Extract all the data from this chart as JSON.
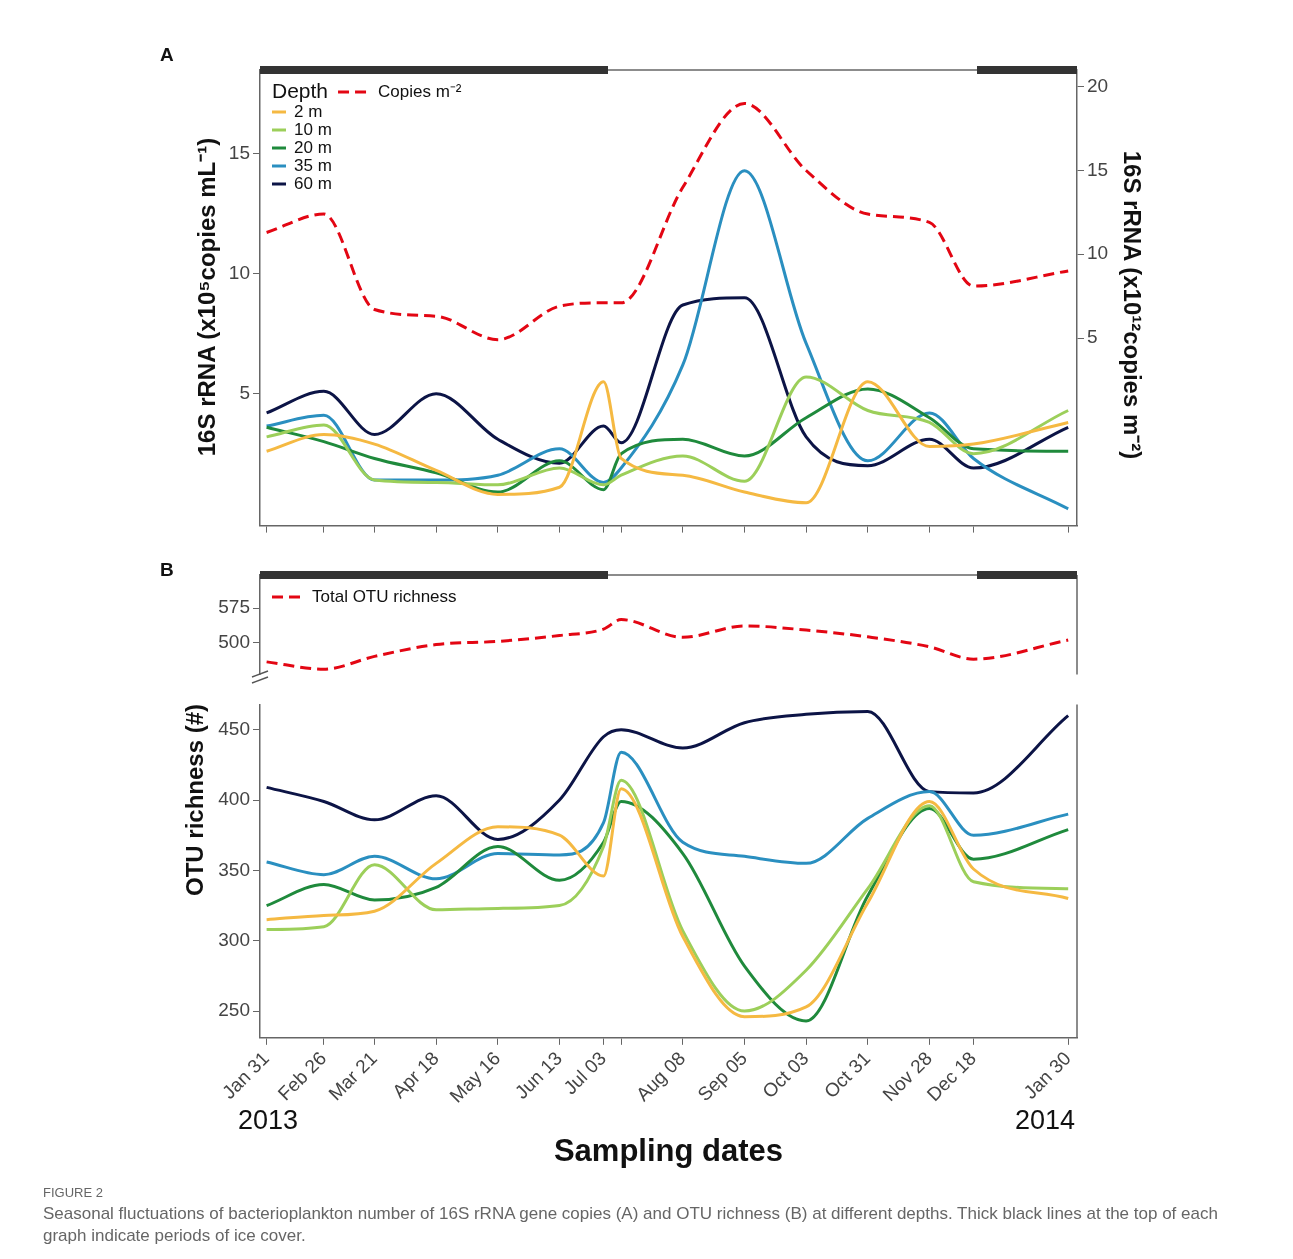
{
  "chart_data": [
    {
      "type": "line",
      "title": "A",
      "ylabel": "16S rRNA (x10⁵copies mL⁻¹)",
      "y2label": "16S rRNA (x10¹²copies m⁻²)",
      "legend_title": "Depth",
      "x": [
        "2013-01-31",
        "2013-02-26",
        "2013-03-21",
        "2013-04-18",
        "2013-05-16",
        "2013-06-13",
        "2013-07-03",
        "2013-07-11",
        "2013-08-08",
        "2013-09-05",
        "2013-10-03",
        "2013-10-31",
        "2013-11-28",
        "2013-12-18",
        "2014-01-30"
      ],
      "xlim": [
        "2013-01-28",
        "2014-02-03"
      ],
      "xticks": [
        {
          "value": "2013-01-31",
          "label": null
        },
        {
          "value": "2013-02-26",
          "label": null
        },
        {
          "value": "2013-03-21",
          "label": null
        },
        {
          "value": "2013-04-18",
          "label": null
        },
        {
          "value": "2013-05-16",
          "label": null
        },
        {
          "value": "2013-06-13",
          "label": null
        },
        {
          "value": "2013-07-03",
          "label": null
        },
        {
          "value": "2013-07-11",
          "label": null
        },
        {
          "value": "2013-08-08",
          "label": null
        },
        {
          "value": "2013-09-05",
          "label": null
        },
        {
          "value": "2013-10-03",
          "label": null
        },
        {
          "value": "2013-10-31",
          "label": null
        },
        {
          "value": "2013-11-28",
          "label": null
        },
        {
          "value": "2013-12-18",
          "label": null
        },
        {
          "value": "2014-01-30",
          "label": null
        }
      ],
      "ylim": [
        -0.5,
        18.5
      ],
      "yticks": [
        5,
        10,
        15
      ],
      "y2lim": [
        -6.2,
        21
      ],
      "y2ticks": [
        5,
        10,
        15,
        20
      ],
      "tick_labels": "y",
      "grid": false,
      "legend": "top left",
      "marker": "none",
      "series": [
        {
          "name": "2 m",
          "color": "#f5b942",
          "values": [
            2.6,
            3.3,
            2.9,
            1.8,
            0.8,
            1.1,
            5.5,
            2.3,
            1.6,
            0.9,
            0.45,
            5.5,
            2.8,
            2.9,
            3.8
          ]
        },
        {
          "name": "10 m",
          "color": "#9ccf5a",
          "values": [
            3.2,
            3.7,
            1.4,
            1.3,
            1.2,
            1.9,
            1.2,
            1.6,
            2.4,
            1.35,
            5.7,
            4.3,
            3.8,
            2.5,
            4.3
          ]
        },
        {
          "name": "20 m",
          "color": "#1f8a3c",
          "values": [
            3.6,
            3.0,
            2.3,
            1.7,
            0.9,
            2.2,
            1.0,
            2.5,
            3.1,
            2.4,
            4.0,
            5.2,
            4.0,
            2.7,
            2.6
          ]
        },
        {
          "name": "35 m",
          "color": "#2a8fc0",
          "values": [
            3.65,
            4.1,
            1.4,
            1.4,
            1.6,
            2.7,
            1.3,
            1.9,
            6.2,
            14.3,
            7.1,
            2.2,
            4.2,
            2.3,
            0.2
          ]
        },
        {
          "name": "60 m",
          "color": "#0c1446",
          "values": [
            4.2,
            5.1,
            3.3,
            5.0,
            3.1,
            2.1,
            3.65,
            2.95,
            8.7,
            9.0,
            3.2,
            2.0,
            3.1,
            1.9,
            3.6
          ]
        },
        {
          "name": "Copies m⁻²",
          "color": "#e30613",
          "axis": "y2",
          "line_style": "dashed",
          "values": [
            11.3,
            12.4,
            6.7,
            6.3,
            4.9,
            6.9,
            7.1,
            7.1,
            14.0,
            19.0,
            15.0,
            12.4,
            11.9,
            8.1,
            9.0
          ]
        }
      ]
    },
    {
      "type": "line",
      "title": "B",
      "x": [
        "2013-01-31",
        "2013-02-26",
        "2013-03-21",
        "2013-04-18",
        "2013-05-16",
        "2013-06-13",
        "2013-07-03",
        "2013-07-11",
        "2013-08-08",
        "2013-09-05",
        "2013-10-03",
        "2013-10-31",
        "2013-11-28",
        "2013-12-18",
        "2014-01-30"
      ],
      "xlim": [
        "2013-01-28",
        "2014-02-03"
      ],
      "ylim": [
        429,
        648
      ],
      "yticks": [
        500,
        575
      ],
      "tick_labels": "y",
      "grid": false,
      "legend": "top left",
      "marker": "none",
      "series": [
        {
          "name": "Total OTU richness",
          "color": "#e30613",
          "line_style": "dashed",
          "values": [
            457,
            441,
            469,
            495,
            502,
            515,
            529,
            550,
            511,
            536,
            527,
            512,
            490,
            463,
            505
          ]
        }
      ]
    },
    {
      "type": "line",
      "xlabel": "Sampling dates",
      "ylabel": "OTU richness (#)",
      "x": [
        "2013-01-31",
        "2013-02-26",
        "2013-03-21",
        "2013-04-18",
        "2013-05-16",
        "2013-06-13",
        "2013-07-03",
        "2013-07-11",
        "2013-08-08",
        "2013-09-05",
        "2013-10-03",
        "2013-10-31",
        "2013-11-28",
        "2013-12-18",
        "2014-01-30"
      ],
      "xlim": [
        "2013-01-28",
        "2014-02-03"
      ],
      "xticks": [
        {
          "value": "2013-01-31",
          "label": "Jan 31"
        },
        {
          "value": "2013-02-26",
          "label": "Feb 26"
        },
        {
          "value": "2013-03-21",
          "label": "Mar 21"
        },
        {
          "value": "2013-04-18",
          "label": "Apr 18"
        },
        {
          "value": "2013-05-16",
          "label": "May 16"
        },
        {
          "value": "2013-06-13",
          "label": "Jun 13"
        },
        {
          "value": "2013-07-03",
          "label": "Jul 03"
        },
        {
          "value": "2013-07-11",
          "label": null
        },
        {
          "value": "2013-08-08",
          "label": "Aug 08"
        },
        {
          "value": "2013-09-05",
          "label": "Sep 05"
        },
        {
          "value": "2013-10-03",
          "label": "Oct 03"
        },
        {
          "value": "2013-10-31",
          "label": "Oct 31"
        },
        {
          "value": "2013-11-28",
          "label": "Nov 28"
        },
        {
          "value": "2013-12-18",
          "label": "Dec 18"
        },
        {
          "value": "2014-01-30",
          "label": "Jan 30"
        }
      ],
      "ylim": [
        231,
        468
      ],
      "yticks": [
        250,
        300,
        350,
        400,
        450
      ],
      "grid": false,
      "marker": "none",
      "annotations": [
        "2013",
        "2014",
        "FIGURE 2",
        "Seasonal fluctuations of bacterioplankton number of 16S rRNA gene copies (A) and OTU richness (B) at different depths. Thick black lines at the top of each graph indicate periods of ice cover."
      ],
      "series": [
        {
          "color": "#f5b942",
          "values": [
            315,
            318,
            321,
            355,
            381,
            375,
            346,
            408,
            303,
            246,
            253,
            327,
            399,
            351,
            330
          ]
        },
        {
          "color": "#9ccf5a",
          "values": [
            308,
            310,
            354,
            322,
            323,
            325,
            367,
            414,
            307,
            250,
            279,
            337,
            396,
            342,
            337
          ]
        },
        {
          "color": "#1f8a3c",
          "values": [
            325,
            340,
            329,
            338,
            367,
            343,
            370,
            399,
            362,
            282,
            243,
            332,
            394,
            358,
            379
          ]
        },
        {
          "color": "#2a8fc0",
          "values": [
            356,
            347,
            360,
            344,
            362,
            361,
            384,
            434,
            370,
            360,
            355,
            387,
            406,
            375,
            390
          ]
        },
        {
          "color": "#0c1446",
          "values": [
            409,
            399,
            386,
            403,
            372,
            400,
            445,
            450,
            437,
            455,
            461,
            463,
            406,
            405,
            460
          ]
        }
      ]
    }
  ]
}
